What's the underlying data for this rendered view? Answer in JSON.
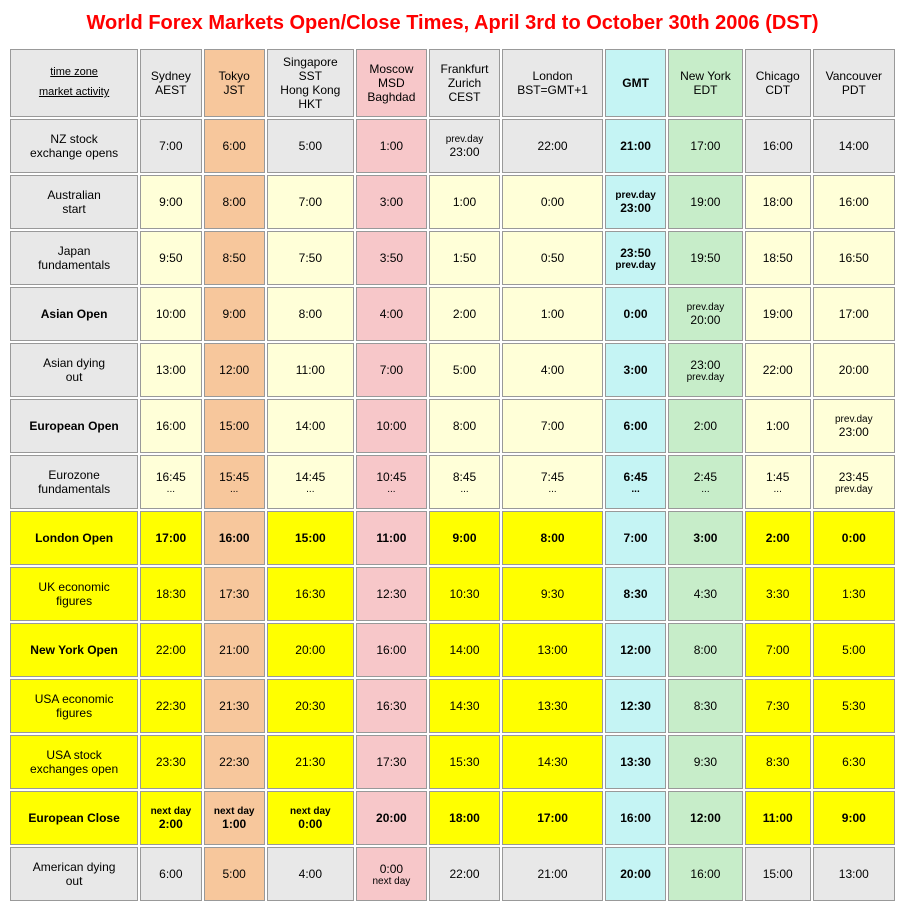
{
  "title": "World Forex Markets Open/Close Times, April 3rd to October 30th 2006 (DST)",
  "corner_top": "time zone",
  "corner_bottom": "market activity",
  "col_bg": {
    "default": "#e8e8e8",
    "tokyo": "#f7c79c",
    "moscow": "#f7c7c9",
    "gmt": "#c5f4f4",
    "ny": "#c7edc9"
  },
  "row_bg": {
    "pale": "#ffffd8",
    "yellow": "#ffff00",
    "grey": "#e8e8e8"
  },
  "columns": [
    {
      "id": "sydney",
      "l1": "Sydney",
      "l2": "AEST",
      "l3": "",
      "bold": false,
      "bg": "#e8e8e8"
    },
    {
      "id": "tokyo",
      "l1": "Tokyo",
      "l2": "JST",
      "l3": "",
      "bold": false,
      "bg": "#f7c79c"
    },
    {
      "id": "singapore",
      "l1": "Singapore",
      "l2": "SST",
      "l3": "Hong Kong",
      "l4": "HKT",
      "bold": false,
      "bg": "#e8e8e8"
    },
    {
      "id": "moscow",
      "l1": "Moscow",
      "l2": "MSD",
      "l3": "Baghdad",
      "bold": false,
      "bg": "#f7c7c9"
    },
    {
      "id": "frankfurt",
      "l1": "Frankfurt",
      "l2": "Zurich",
      "l3": "CEST",
      "bold": false,
      "bg": "#e8e8e8"
    },
    {
      "id": "london",
      "l1": "London",
      "l2": "BST=GMT+1",
      "l3": "",
      "bold": false,
      "bg": "#e8e8e8"
    },
    {
      "id": "gmt",
      "l1": "GMT",
      "l2": "",
      "l3": "",
      "bold": true,
      "bg": "#c5f4f4"
    },
    {
      "id": "ny",
      "l1": "New York",
      "l2": "EDT",
      "l3": "",
      "bold": false,
      "bg": "#c7edc9"
    },
    {
      "id": "chicago",
      "l1": "Chicago",
      "l2": "CDT",
      "l3": "",
      "bold": false,
      "bg": "#e8e8e8"
    },
    {
      "id": "vancouver",
      "l1": "Vancouver",
      "l2": "PDT",
      "l3": "",
      "bold": false,
      "bg": "#e8e8e8"
    }
  ],
  "rows": [
    {
      "label": "NZ stock exchange opens",
      "bold": false,
      "band": "grey",
      "cells": [
        {
          "v": "7:00"
        },
        {
          "v": "6:00"
        },
        {
          "v": "5:00"
        },
        {
          "v": "1:00"
        },
        {
          "pre": "prev.day",
          "v": "23:00"
        },
        {
          "v": "22:00"
        },
        {
          "v": "21:00",
          "b": true
        },
        {
          "v": "17:00"
        },
        {
          "v": "16:00"
        },
        {
          "v": "14:00"
        }
      ]
    },
    {
      "label": "Australian start",
      "bold": false,
      "band": "pale",
      "cells": [
        {
          "v": "9:00"
        },
        {
          "v": "8:00"
        },
        {
          "v": "7:00"
        },
        {
          "v": "3:00"
        },
        {
          "v": "1:00"
        },
        {
          "v": "0:00"
        },
        {
          "pre": "prev.day",
          "v": "23:00",
          "b": true
        },
        {
          "v": "19:00"
        },
        {
          "v": "18:00"
        },
        {
          "v": "16:00"
        }
      ]
    },
    {
      "label": "Japan fundamentals",
      "bold": false,
      "band": "pale",
      "cells": [
        {
          "v": "9:50"
        },
        {
          "v": "8:50"
        },
        {
          "v": "7:50"
        },
        {
          "v": "3:50"
        },
        {
          "v": "1:50"
        },
        {
          "v": "0:50"
        },
        {
          "v": "23:50",
          "post": "prev.day",
          "b": true
        },
        {
          "v": "19:50"
        },
        {
          "v": "18:50"
        },
        {
          "v": "16:50"
        }
      ]
    },
    {
      "label": "Asian Open",
      "bold": true,
      "band": "pale",
      "cells": [
        {
          "v": "10:00"
        },
        {
          "v": "9:00"
        },
        {
          "v": "8:00"
        },
        {
          "v": "4:00"
        },
        {
          "v": "2:00"
        },
        {
          "v": "1:00"
        },
        {
          "v": "0:00",
          "b": true
        },
        {
          "pre": "prev.day",
          "v": "20:00"
        },
        {
          "v": "19:00"
        },
        {
          "v": "17:00"
        }
      ]
    },
    {
      "label": "Asian dying out",
      "bold": false,
      "band": "pale",
      "cells": [
        {
          "v": "13:00"
        },
        {
          "v": "12:00"
        },
        {
          "v": "11:00"
        },
        {
          "v": "7:00"
        },
        {
          "v": "5:00"
        },
        {
          "v": "4:00"
        },
        {
          "v": "3:00",
          "b": true
        },
        {
          "v": "23:00",
          "post": "prev.day"
        },
        {
          "v": "22:00"
        },
        {
          "v": "20:00"
        }
      ]
    },
    {
      "label": "European Open",
      "bold": true,
      "band": "pale",
      "cells": [
        {
          "v": "16:00"
        },
        {
          "v": "15:00"
        },
        {
          "v": "14:00"
        },
        {
          "v": "10:00"
        },
        {
          "v": "8:00"
        },
        {
          "v": "7:00"
        },
        {
          "v": "6:00",
          "b": true
        },
        {
          "v": "2:00"
        },
        {
          "v": "1:00"
        },
        {
          "pre": "prev.day",
          "v": "23:00"
        }
      ]
    },
    {
      "label": "Eurozone fundamentals",
      "bold": false,
      "band": "pale",
      "cells": [
        {
          "v": "16:45",
          "post": "..."
        },
        {
          "v": "15:45",
          "post": "..."
        },
        {
          "v": "14:45",
          "post": "..."
        },
        {
          "v": "10:45",
          "post": "..."
        },
        {
          "v": "8:45",
          "post": "..."
        },
        {
          "v": "7:45",
          "post": "..."
        },
        {
          "v": "6:45",
          "post": "...",
          "b": true
        },
        {
          "v": "2:45",
          "post": "..."
        },
        {
          "v": "1:45",
          "post": "..."
        },
        {
          "v": "23:45",
          "post": "prev.day"
        }
      ]
    },
    {
      "label": "London Open",
      "bold": true,
      "band": "yellow",
      "cells": [
        {
          "v": "17:00",
          "b": true
        },
        {
          "v": "16:00",
          "b": true
        },
        {
          "v": "15:00",
          "b": true
        },
        {
          "v": "11:00",
          "b": true
        },
        {
          "v": "9:00",
          "b": true
        },
        {
          "v": "8:00",
          "b": true
        },
        {
          "v": "7:00",
          "b": true
        },
        {
          "v": "3:00",
          "b": true
        },
        {
          "v": "2:00",
          "b": true
        },
        {
          "v": "0:00",
          "b": true
        }
      ]
    },
    {
      "label": "UK economic figures",
      "bold": false,
      "band": "yellow",
      "cells": [
        {
          "v": "18:30"
        },
        {
          "v": "17:30"
        },
        {
          "v": "16:30"
        },
        {
          "v": "12:30"
        },
        {
          "v": "10:30"
        },
        {
          "v": "9:30"
        },
        {
          "v": "8:30",
          "b": true
        },
        {
          "v": "4:30"
        },
        {
          "v": "3:30"
        },
        {
          "v": "1:30"
        }
      ]
    },
    {
      "label": "New York Open",
      "bold": true,
      "band": "yellow",
      "cells": [
        {
          "v": "22:00"
        },
        {
          "v": "21:00"
        },
        {
          "v": "20:00"
        },
        {
          "v": "16:00"
        },
        {
          "v": "14:00"
        },
        {
          "v": "13:00"
        },
        {
          "v": "12:00",
          "b": true
        },
        {
          "v": "8:00"
        },
        {
          "v": "7:00"
        },
        {
          "v": "5:00"
        }
      ]
    },
    {
      "label": "USA economic figures",
      "bold": false,
      "band": "yellow",
      "cells": [
        {
          "v": "22:30"
        },
        {
          "v": "21:30"
        },
        {
          "v": "20:30"
        },
        {
          "v": "16:30"
        },
        {
          "v": "14:30"
        },
        {
          "v": "13:30"
        },
        {
          "v": "12:30",
          "b": true
        },
        {
          "v": "8:30"
        },
        {
          "v": "7:30"
        },
        {
          "v": "5:30"
        }
      ]
    },
    {
      "label": "USA stock exchanges open",
      "bold": false,
      "band": "yellow",
      "cells": [
        {
          "v": "23:30"
        },
        {
          "v": "22:30"
        },
        {
          "v": "21:30"
        },
        {
          "v": "17:30"
        },
        {
          "v": "15:30"
        },
        {
          "v": "14:30"
        },
        {
          "v": "13:30",
          "b": true
        },
        {
          "v": "9:30"
        },
        {
          "v": "8:30"
        },
        {
          "v": "6:30"
        }
      ]
    },
    {
      "label": "European Close",
      "bold": true,
      "band": "yellow",
      "cells": [
        {
          "pre": "next day",
          "v": "2:00",
          "b": true
        },
        {
          "pre": "next day",
          "v": "1:00",
          "b": true
        },
        {
          "pre": "next day",
          "v": "0:00",
          "b": true
        },
        {
          "v": "20:00",
          "b": true
        },
        {
          "v": "18:00",
          "b": true
        },
        {
          "v": "17:00",
          "b": true
        },
        {
          "v": "16:00",
          "b": true
        },
        {
          "v": "12:00",
          "b": true
        },
        {
          "v": "11:00",
          "b": true
        },
        {
          "v": "9:00",
          "b": true
        }
      ]
    },
    {
      "label": "American dying out",
      "bold": false,
      "band": "grey",
      "cells": [
        {
          "v": "6:00"
        },
        {
          "v": "5:00"
        },
        {
          "v": "4:00"
        },
        {
          "v": "0:00",
          "post": "next day"
        },
        {
          "v": "22:00"
        },
        {
          "v": "21:00"
        },
        {
          "v": "20:00",
          "b": true
        },
        {
          "v": "16:00"
        },
        {
          "v": "15:00"
        },
        {
          "v": "13:00"
        }
      ]
    }
  ],
  "col_override_bg": {
    "tokyo": "#f7c79c",
    "moscow": "#f7c7c9",
    "gmt": "#c5f4f4",
    "ny": "#c7edc9"
  }
}
